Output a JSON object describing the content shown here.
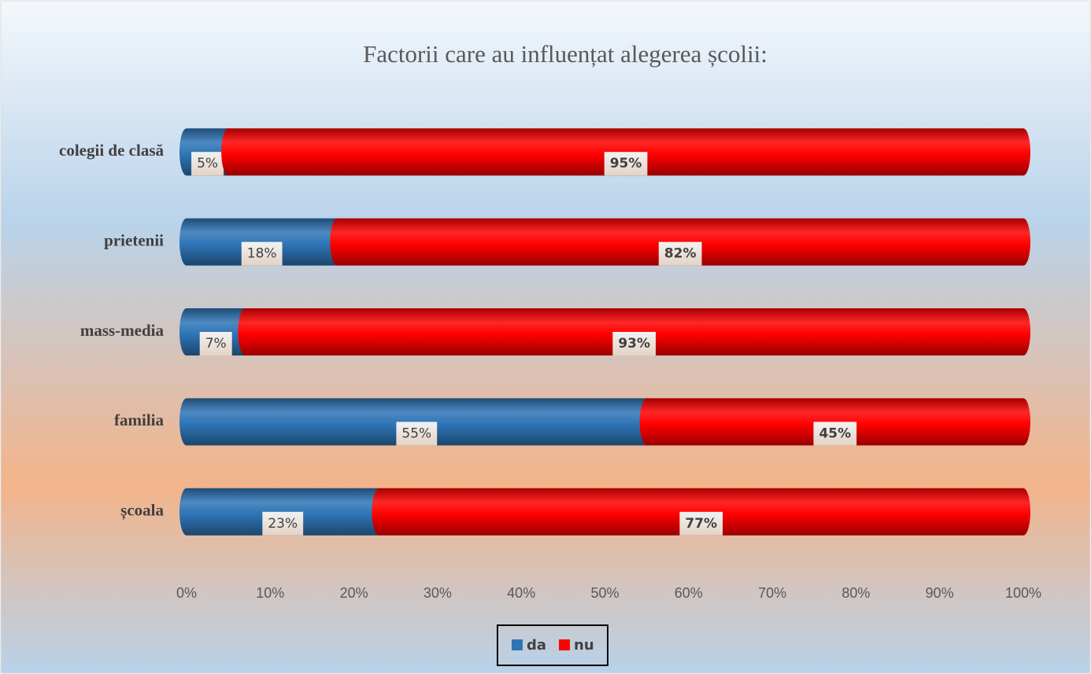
{
  "chart_data": {
    "type": "stacked_bar_horizontal",
    "title": "Factorii care au influențat alegerea școlii:",
    "categories": [
      "colegii de clasă",
      "prietenii",
      "mass-media",
      "familia",
      "școala"
    ],
    "series": [
      {
        "name": "da",
        "color": "#2e75b6",
        "values": [
          5,
          18,
          7,
          55,
          23
        ],
        "value_labels": [
          "5%",
          "18%",
          "7%",
          "55%",
          "23%"
        ]
      },
      {
        "name": "nu",
        "color": "#ff0000",
        "values": [
          95,
          82,
          93,
          45,
          77
        ],
        "value_labels": [
          "95%",
          "82%",
          "93%",
          "45%",
          "77%"
        ]
      }
    ],
    "xlim": [
      0,
      100
    ],
    "xticks": [
      {
        "value": 0,
        "label": "0%"
      },
      {
        "value": 10,
        "label": "10%"
      },
      {
        "value": 20,
        "label": "20%"
      },
      {
        "value": 30,
        "label": "30%"
      },
      {
        "value": 40,
        "label": "40%"
      },
      {
        "value": 50,
        "label": "50%"
      },
      {
        "value": 60,
        "label": "60%"
      },
      {
        "value": 70,
        "label": "70%"
      },
      {
        "value": 80,
        "label": "80%"
      },
      {
        "value": 90,
        "label": "90%"
      },
      {
        "value": 100,
        "label": "100%"
      }
    ],
    "grid": false,
    "legend": "bottom"
  }
}
